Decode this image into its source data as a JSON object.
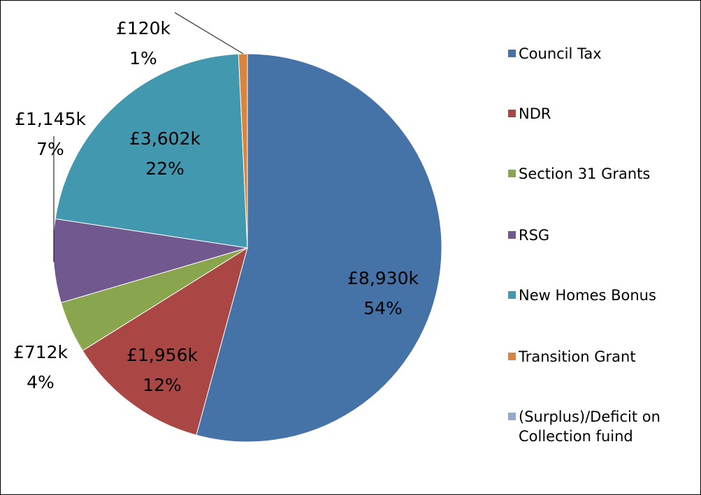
{
  "chart_data": {
    "type": "pie",
    "categories": [
      "Council Tax",
      "NDR",
      "Section 31 Grants",
      "RSG",
      "New Homes Bonus",
      "Transition Grant",
      "(Surplus)/Deficit on Collection fuind"
    ],
    "values": [
      8930,
      1956,
      712,
      1145,
      3602,
      120,
      null
    ],
    "value_labels": [
      "£8,930k",
      "£1,956k",
      "£712k",
      "£1,145k",
      "£3,602k",
      "£120k",
      null
    ],
    "percent_labels": [
      "54%",
      "12%",
      "4%",
      "7%",
      "22%",
      "1%",
      null
    ],
    "colors": [
      "#4572a7",
      "#aa4643",
      "#89a54e",
      "#71588f",
      "#4198af",
      "#db843d",
      "#93a9cf"
    ],
    "legend": "right"
  }
}
